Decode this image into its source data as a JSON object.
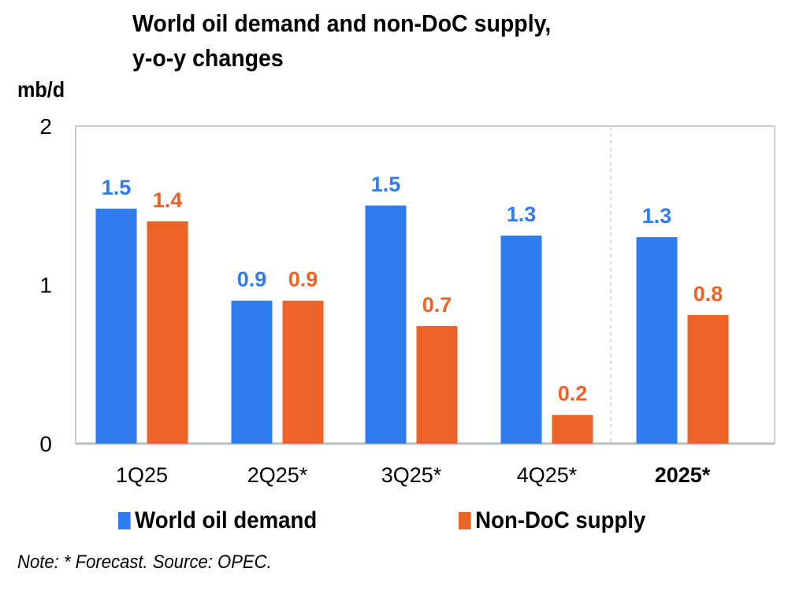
{
  "chart_data": {
    "type": "bar",
    "title": "World oil demand and non-DoC supply,",
    "title_line2": "y-o-y changes",
    "ylabel": "mb/d",
    "ylim": [
      0,
      2
    ],
    "yticks": [
      "0",
      "1",
      "2"
    ],
    "categories": [
      "1Q25",
      "2Q25*",
      "3Q25*",
      "4Q25*",
      "2025*"
    ],
    "series": [
      {
        "name": "World oil demand",
        "color": "#2f7bef",
        "values": [
          1.48,
          0.9,
          1.5,
          1.31,
          1.3
        ],
        "labels": [
          "1.5",
          "0.9",
          "1.5",
          "1.3",
          "1.3"
        ]
      },
      {
        "name": "Non-DoC supply",
        "color": "#ee6226",
        "values": [
          1.4,
          0.9,
          0.74,
          0.18,
          0.81
        ],
        "labels": [
          "1.4",
          "0.9",
          "0.7",
          "0.2",
          "0.8"
        ]
      }
    ],
    "grid": false,
    "legend": "bottom",
    "note": "Note: * Forecast. Source: OPEC."
  }
}
